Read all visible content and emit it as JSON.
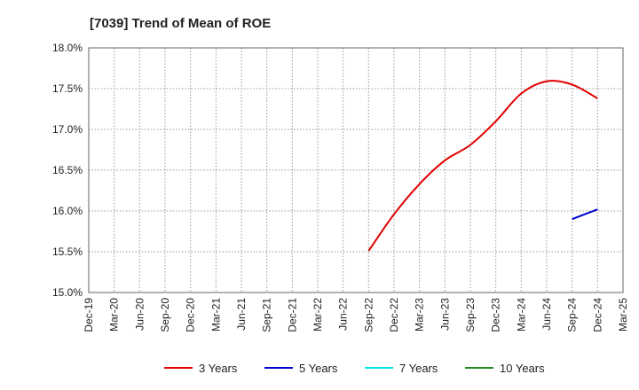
{
  "chart_data": {
    "type": "line",
    "title": "[7039]  Trend of Mean of ROE",
    "xlabel": "",
    "ylabel": "",
    "x_ticks": [
      "Dec-19",
      "Mar-20",
      "Jun-20",
      "Sep-20",
      "Dec-20",
      "Mar-21",
      "Jun-21",
      "Sep-21",
      "Dec-21",
      "Mar-22",
      "Jun-22",
      "Sep-22",
      "Dec-22",
      "Mar-23",
      "Jun-23",
      "Sep-23",
      "Dec-23",
      "Mar-24",
      "Jun-24",
      "Sep-24",
      "Dec-24",
      "Mar-25"
    ],
    "y_ticks": [
      "15.0%",
      "15.5%",
      "16.0%",
      "16.5%",
      "17.0%",
      "17.5%",
      "18.0%"
    ],
    "ylim": [
      15.0,
      18.0
    ],
    "y_unit": "%",
    "grid": "dotted",
    "legend_position": "bottom",
    "series": [
      {
        "name": "3 Years",
        "color": "#e00000",
        "x": [
          "Sep-22",
          "Dec-22",
          "Mar-23",
          "Jun-23",
          "Sep-23",
          "Dec-23",
          "Mar-24",
          "Jun-24",
          "Sep-24",
          "Dec-24"
        ],
        "values": [
          15.51,
          15.96,
          16.33,
          16.62,
          16.81,
          17.1,
          17.44,
          17.59,
          17.55,
          17.38
        ]
      },
      {
        "name": "5 Years",
        "color": "#0000cc",
        "x": [
          "Sep-24",
          "Dec-24"
        ],
        "values": [
          15.9,
          16.02
        ]
      },
      {
        "name": "7 Years",
        "color": "#00e5ee",
        "x": [],
        "values": []
      },
      {
        "name": "10 Years",
        "color": "#228b22",
        "x": [],
        "values": []
      }
    ]
  }
}
